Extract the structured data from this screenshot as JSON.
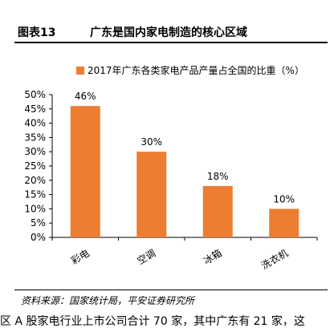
{
  "page": {
    "top_fragment": "",
    "figure_number": "图表13",
    "figure_title": "广东是国内家电制造的核心区域",
    "source": "资料来源：国家统计局，平安证券研究所",
    "bottom_fragment": "区   A 股家电行业上市公司合计 70 家，其中广东有 21 家，这"
  },
  "chart_data": {
    "type": "bar",
    "title": "",
    "xlabel": "",
    "ylabel": "",
    "categories": [
      "彩电",
      "空调",
      "冰箱",
      "洗衣机"
    ],
    "series": [
      {
        "name": "2017年广东各类家电产品产量占全国的比重（%）",
        "values": [
          46,
          30,
          18,
          10
        ]
      }
    ],
    "data_labels": [
      "46%",
      "30%",
      "18%",
      "10%"
    ],
    "y_ticks": [
      "0%",
      "5%",
      "10%",
      "15%",
      "20%",
      "25%",
      "30%",
      "35%",
      "40%",
      "45%",
      "50%"
    ],
    "ylim": [
      0,
      50
    ],
    "grid": false,
    "legend_position": "top",
    "bar_color": "#ED7D31"
  }
}
